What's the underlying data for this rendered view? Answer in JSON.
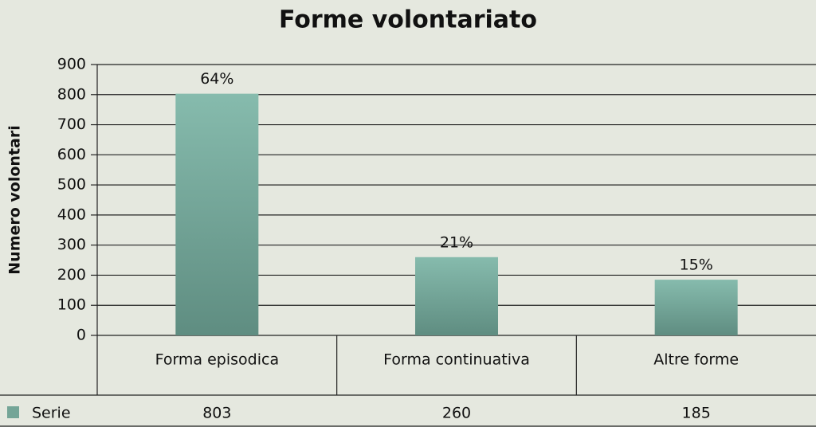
{
  "chart_data": {
    "type": "bar",
    "title": "Forme volontariato",
    "y_label": "Numero volontari",
    "categories": [
      "Forma episodica",
      "Forma continuativa",
      "Altre forme"
    ],
    "series": [
      {
        "name": "Serie",
        "color": "#74a597",
        "values": [
          803,
          260,
          185
        ]
      }
    ],
    "annotations": [
      "64%",
      "21%",
      "15%"
    ],
    "ylim": [
      0,
      900
    ],
    "yticks": [
      0,
      100,
      200,
      300,
      400,
      500,
      600,
      700,
      800,
      900
    ],
    "grid": true,
    "data_table": true
  }
}
